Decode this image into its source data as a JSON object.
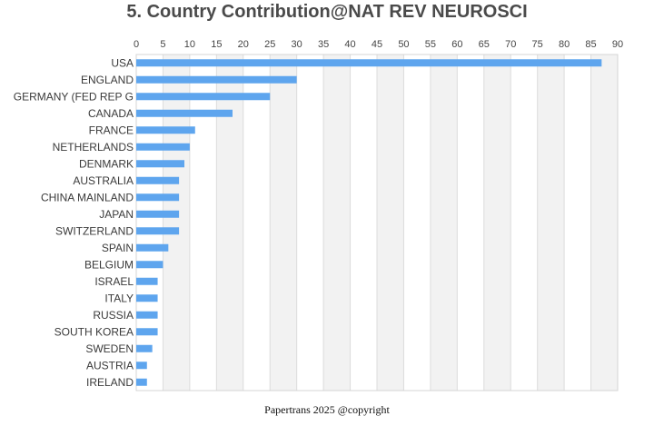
{
  "chart_data": {
    "type": "bar",
    "orientation": "horizontal",
    "title": "5. Country Contribution@NAT REV NEUROSCI",
    "xlabel": "",
    "ylabel": "",
    "xlim": [
      0,
      90
    ],
    "x_ticks": [
      0,
      5,
      10,
      15,
      20,
      25,
      30,
      35,
      40,
      45,
      50,
      55,
      60,
      65,
      70,
      75,
      80,
      85,
      90
    ],
    "x_axis_position": "top",
    "grid": "alternating vertical bands",
    "categories": [
      "USA",
      "ENGLAND",
      "GERMANY (FED REP G",
      "CANADA",
      "FRANCE",
      "NETHERLANDS",
      "DENMARK",
      "AUSTRALIA",
      "CHINA MAINLAND",
      "JAPAN",
      "SWITZERLAND",
      "SPAIN",
      "BELGIUM",
      "ISRAEL",
      "ITALY",
      "RUSSIA",
      "SOUTH KOREA",
      "SWEDEN",
      "AUSTRIA",
      "IRELAND"
    ],
    "values": [
      87,
      30,
      25,
      18,
      11,
      10,
      9,
      8,
      8,
      8,
      8,
      6,
      5,
      4,
      4,
      4,
      4,
      3,
      2,
      2
    ],
    "bar_color": "#5ea5ee",
    "band_color": "#f2f2f2",
    "grid_color": "#dcdcdc"
  },
  "footer": {
    "text": "Papertrans 2025 @copyright"
  }
}
